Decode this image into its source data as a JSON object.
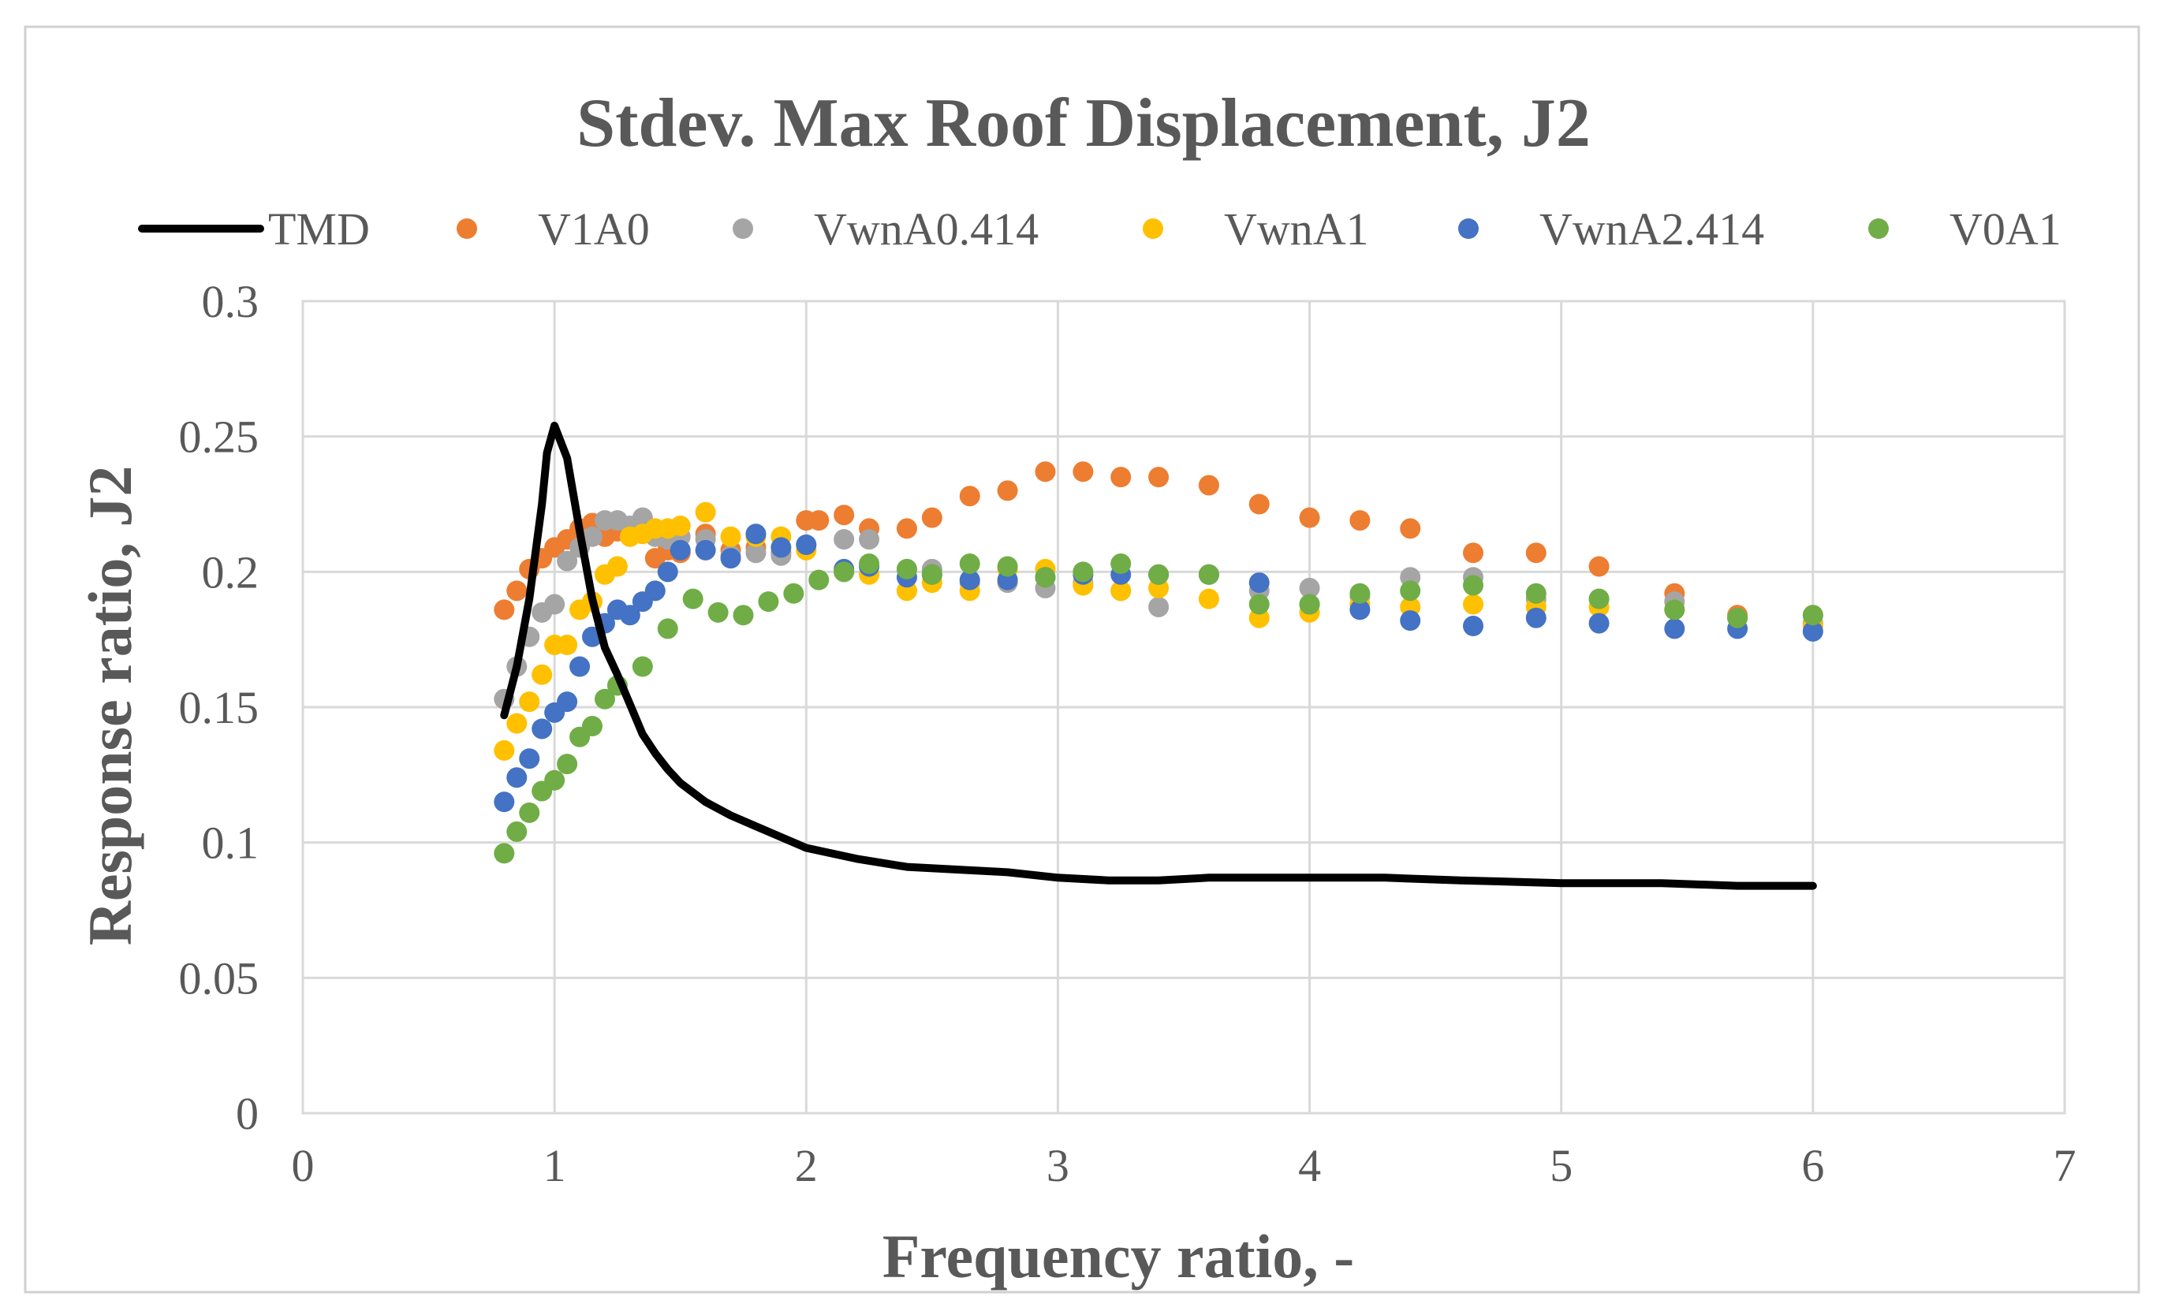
{
  "chart_data": {
    "type": "scatter",
    "title": "Stdev. Max Roof Displacement, J2",
    "xlabel": "Frequency ratio, -",
    "ylabel": "Response ratio, J2",
    "xlim": [
      0,
      7
    ],
    "ylim": [
      0,
      0.3
    ],
    "xticks": [
      0,
      1,
      2,
      3,
      4,
      5,
      6,
      7
    ],
    "xtick_labels": [
      "0",
      "1",
      "2",
      "3",
      "4",
      "5",
      "6",
      "7"
    ],
    "yticks": [
      0,
      0.05,
      0.1,
      0.15,
      0.2,
      0.25,
      0.3
    ],
    "ytick_labels": [
      "0",
      "0.05",
      "0.1",
      "0.15",
      "0.2",
      "0.25",
      "0.3"
    ],
    "grid": true,
    "legend_position": "top",
    "series": [
      {
        "name": "TMD",
        "kind": "line",
        "color": "#000000",
        "x": [
          0.8,
          0.85,
          0.9,
          0.95,
          0.97,
          1.0,
          1.05,
          1.1,
          1.15,
          1.2,
          1.25,
          1.3,
          1.35,
          1.4,
          1.45,
          1.5,
          1.6,
          1.7,
          1.8,
          1.9,
          2.0,
          2.2,
          2.4,
          2.6,
          2.8,
          3.0,
          3.2,
          3.4,
          3.6,
          3.8,
          4.0,
          4.3,
          4.6,
          5.0,
          5.4,
          5.7,
          6.0
        ],
        "y": [
          0.147,
          0.165,
          0.19,
          0.225,
          0.244,
          0.254,
          0.242,
          0.215,
          0.19,
          0.172,
          0.162,
          0.151,
          0.14,
          0.133,
          0.127,
          0.122,
          0.115,
          0.11,
          0.106,
          0.102,
          0.098,
          0.094,
          0.091,
          0.09,
          0.089,
          0.087,
          0.086,
          0.086,
          0.087,
          0.087,
          0.087,
          0.087,
          0.086,
          0.085,
          0.085,
          0.084,
          0.084
        ]
      },
      {
        "name": "V1A0",
        "kind": "scatter",
        "color": "#ed7d31",
        "x": [
          0.8,
          0.85,
          0.9,
          0.95,
          1.0,
          1.05,
          1.1,
          1.15,
          1.2,
          1.25,
          1.3,
          1.35,
          1.4,
          1.45,
          1.5,
          1.6,
          1.7,
          1.8,
          1.9,
          2.0,
          2.05,
          2.15,
          2.25,
          2.4,
          2.5,
          2.65,
          2.8,
          2.95,
          3.1,
          3.25,
          3.4,
          3.6,
          3.8,
          4.0,
          4.2,
          4.4,
          4.65,
          4.9,
          5.15,
          5.45,
          5.7,
          6.0
        ],
        "y": [
          0.186,
          0.193,
          0.201,
          0.205,
          0.209,
          0.212,
          0.216,
          0.218,
          0.213,
          0.215,
          0.216,
          0.215,
          0.205,
          0.208,
          0.207,
          0.214,
          0.208,
          0.209,
          0.207,
          0.219,
          0.219,
          0.221,
          0.216,
          0.216,
          0.22,
          0.228,
          0.23,
          0.237,
          0.237,
          0.235,
          0.235,
          0.232,
          0.225,
          0.22,
          0.219,
          0.216,
          0.207,
          0.207,
          0.202,
          0.192,
          0.184,
          0.184
        ]
      },
      {
        "name": "VwnA0.414",
        "kind": "scatter",
        "color": "#a5a5a5",
        "x": [
          0.8,
          0.85,
          0.9,
          0.95,
          1.0,
          1.05,
          1.1,
          1.15,
          1.2,
          1.25,
          1.3,
          1.35,
          1.4,
          1.45,
          1.5,
          1.6,
          1.7,
          1.8,
          1.9,
          2.0,
          2.15,
          2.25,
          2.4,
          2.5,
          2.65,
          2.8,
          2.95,
          3.1,
          3.25,
          3.4,
          3.6,
          3.8,
          4.0,
          4.2,
          4.4,
          4.65,
          4.9,
          5.15,
          5.45,
          5.7,
          6.0
        ],
        "y": [
          0.153,
          0.165,
          0.176,
          0.185,
          0.188,
          0.204,
          0.209,
          0.213,
          0.219,
          0.219,
          0.217,
          0.22,
          0.213,
          0.212,
          0.213,
          0.212,
          0.206,
          0.207,
          0.206,
          0.21,
          0.212,
          0.212,
          0.201,
          0.201,
          0.196,
          0.196,
          0.194,
          0.196,
          0.193,
          0.187,
          0.199,
          0.193,
          0.194,
          0.191,
          0.198,
          0.198,
          0.19,
          0.19,
          0.189,
          0.183,
          0.181
        ]
      },
      {
        "name": "VwnA1",
        "kind": "scatter",
        "color": "#ffc000",
        "x": [
          0.8,
          0.85,
          0.9,
          0.95,
          1.0,
          1.05,
          1.1,
          1.15,
          1.2,
          1.25,
          1.3,
          1.35,
          1.4,
          1.45,
          1.5,
          1.6,
          1.7,
          1.8,
          1.9,
          2.0,
          2.15,
          2.25,
          2.4,
          2.5,
          2.65,
          2.8,
          2.95,
          3.1,
          3.25,
          3.4,
          3.6,
          3.8,
          4.0,
          4.2,
          4.4,
          4.65,
          4.9,
          5.15,
          5.45,
          5.7,
          6.0
        ],
        "y": [
          0.134,
          0.144,
          0.152,
          0.162,
          0.173,
          0.173,
          0.186,
          0.189,
          0.199,
          0.202,
          0.213,
          0.214,
          0.216,
          0.216,
          0.217,
          0.222,
          0.213,
          0.213,
          0.213,
          0.208,
          0.2,
          0.199,
          0.193,
          0.196,
          0.193,
          0.201,
          0.201,
          0.195,
          0.193,
          0.194,
          0.19,
          0.183,
          0.185,
          0.188,
          0.187,
          0.188,
          0.187,
          0.187,
          0.186,
          0.183,
          0.18
        ]
      },
      {
        "name": "VwnA2.414",
        "kind": "scatter",
        "color": "#4472c4",
        "x": [
          0.8,
          0.85,
          0.9,
          0.95,
          1.0,
          1.05,
          1.1,
          1.15,
          1.2,
          1.25,
          1.3,
          1.35,
          1.4,
          1.45,
          1.5,
          1.6,
          1.7,
          1.8,
          1.9,
          2.0,
          2.15,
          2.25,
          2.4,
          2.5,
          2.65,
          2.8,
          2.95,
          3.1,
          3.25,
          3.4,
          3.6,
          3.8,
          4.0,
          4.2,
          4.4,
          4.65,
          4.9,
          5.15,
          5.45,
          5.7,
          6.0
        ],
        "y": [
          0.115,
          0.124,
          0.131,
          0.142,
          0.148,
          0.152,
          0.165,
          0.176,
          0.181,
          0.186,
          0.184,
          0.189,
          0.193,
          0.2,
          0.208,
          0.208,
          0.205,
          0.214,
          0.209,
          0.21,
          0.201,
          0.202,
          0.198,
          0.199,
          0.197,
          0.197,
          0.198,
          0.199,
          0.199,
          0.199,
          0.199,
          0.196,
          0.188,
          0.186,
          0.182,
          0.18,
          0.183,
          0.181,
          0.179,
          0.179,
          0.178
        ]
      },
      {
        "name": "V0A1",
        "kind": "scatter",
        "color": "#70ad47",
        "x": [
          0.8,
          0.85,
          0.9,
          0.95,
          1.0,
          1.05,
          1.1,
          1.15,
          1.2,
          1.25,
          1.35,
          1.45,
          1.55,
          1.65,
          1.75,
          1.85,
          1.95,
          2.05,
          2.15,
          2.25,
          2.4,
          2.5,
          2.65,
          2.8,
          2.95,
          3.1,
          3.25,
          3.4,
          3.6,
          3.8,
          4.0,
          4.2,
          4.4,
          4.65,
          4.9,
          5.15,
          5.45,
          5.7,
          6.0
        ],
        "y": [
          0.096,
          0.104,
          0.111,
          0.119,
          0.123,
          0.129,
          0.139,
          0.143,
          0.153,
          0.158,
          0.165,
          0.179,
          0.19,
          0.185,
          0.184,
          0.189,
          0.192,
          0.197,
          0.2,
          0.203,
          0.201,
          0.199,
          0.203,
          0.202,
          0.198,
          0.2,
          0.203,
          0.199,
          0.199,
          0.188,
          0.188,
          0.192,
          0.193,
          0.195,
          0.192,
          0.19,
          0.186,
          0.183,
          0.184
        ]
      }
    ]
  }
}
